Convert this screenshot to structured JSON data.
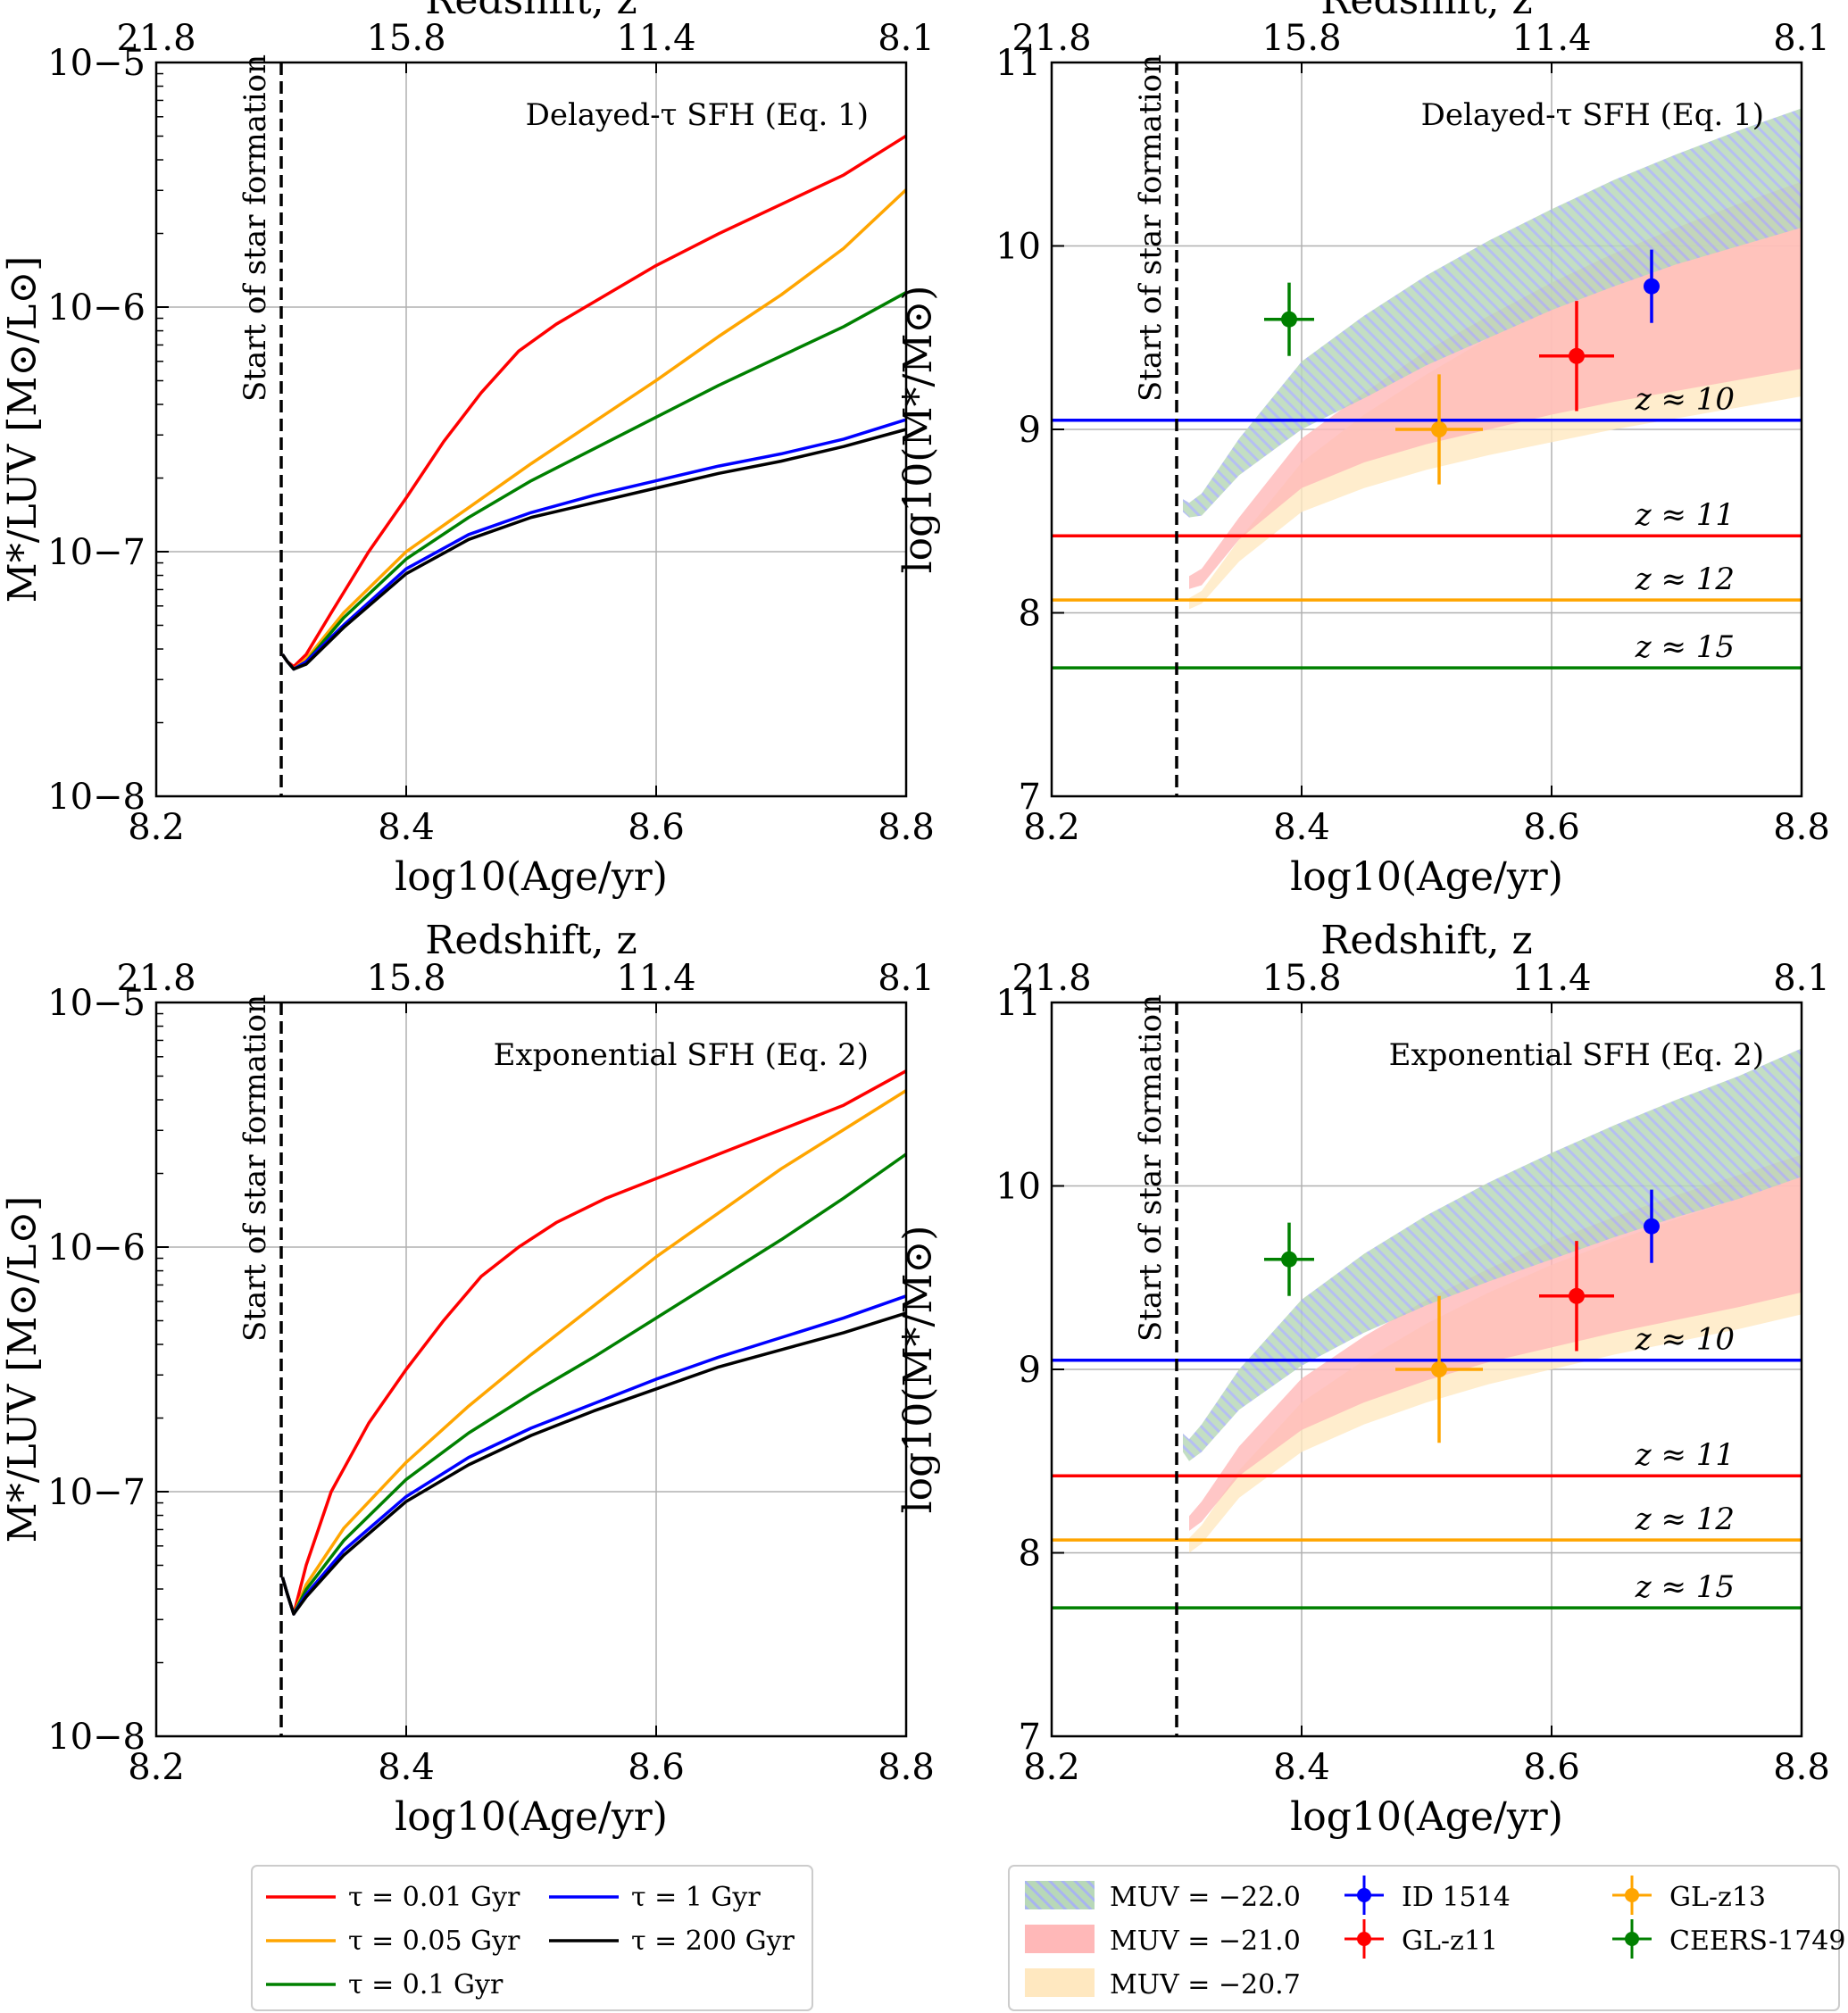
{
  "figure": {
    "legend_left": [
      {
        "label": "τ = 0.01 Gyr",
        "color": "#ff0000"
      },
      {
        "label": "τ = 0.05 Gyr",
        "color": "#ffa500"
      },
      {
        "label": "τ = 0.1 Gyr",
        "color": "#008000"
      },
      {
        "label": "τ = 1 Gyr",
        "color": "#0000ff"
      },
      {
        "label": "τ = 200 Gyr",
        "color": "#000000"
      }
    ],
    "legend_right": [
      {
        "label": "MUV = −22.0",
        "kind": "band",
        "color": "#b8d8b8",
        "hatch": "#a8b4f0"
      },
      {
        "label": "MUV = −21.0",
        "kind": "band",
        "color": "#ffb8b8"
      },
      {
        "label": "MUV = −20.7",
        "kind": "band",
        "color": "#ffe8c0"
      },
      {
        "label": "ID 1514",
        "kind": "point",
        "color": "#0000ff"
      },
      {
        "label": "GL-z11",
        "kind": "point",
        "color": "#ff0000"
      },
      {
        "label": "GL-z13",
        "kind": "point",
        "color": "#ffa500"
      },
      {
        "label": "CEERS-1749",
        "kind": "point",
        "color": "#008000"
      }
    ]
  },
  "chart_data": [
    {
      "id": "delayed-ml",
      "type": "line",
      "annotation": "Delayed-τ SFH (Eq. 1)",
      "xlabel": "log10(Age/yr)",
      "ylabel": "M*/LUV [M⊙/L⊙]",
      "top_axis_label": "Redshift, z",
      "xlim": [
        8.2,
        8.8
      ],
      "ylim_log": [
        -8,
        -5
      ],
      "yscale": "log",
      "x_ticks": [
        "8.2",
        "8.4",
        "8.6",
        "8.8"
      ],
      "x_tick_values": [
        8.2,
        8.4,
        8.6,
        8.8
      ],
      "y_ticks": [
        "10−8",
        "10−7",
        "10−6",
        "10−5"
      ],
      "y_tick_values": [
        -8,
        -7,
        -6,
        -5
      ],
      "top_ticks": [
        "21.8",
        "15.8",
        "11.4",
        "8.1"
      ],
      "top_tick_values": [
        8.2,
        8.4,
        8.6,
        8.8
      ],
      "vline": {
        "x": 8.3,
        "label": "Start of star formation"
      },
      "series": [
        {
          "name": "τ = 0.01 Gyr",
          "color": "#ff0000",
          "x": [
            8.301,
            8.305,
            8.31,
            8.32,
            8.34,
            8.37,
            8.4,
            8.43,
            8.46,
            8.49,
            8.52,
            8.56,
            8.6,
            8.65,
            8.7,
            8.75,
            8.8
          ],
          "y": [
            -7.42,
            -7.45,
            -7.47,
            -7.42,
            -7.25,
            -7.0,
            -6.78,
            -6.55,
            -6.35,
            -6.18,
            -6.07,
            -5.95,
            -5.83,
            -5.7,
            -5.58,
            -5.46,
            -5.3
          ]
        },
        {
          "name": "τ = 0.05 Gyr",
          "color": "#ffa500",
          "x": [
            8.301,
            8.305,
            8.31,
            8.32,
            8.35,
            8.4,
            8.45,
            8.5,
            8.55,
            8.6,
            8.65,
            8.7,
            8.75,
            8.8
          ],
          "y": [
            -7.42,
            -7.45,
            -7.48,
            -7.44,
            -7.25,
            -7.0,
            -6.82,
            -6.64,
            -6.47,
            -6.3,
            -6.12,
            -5.95,
            -5.76,
            -5.52
          ]
        },
        {
          "name": "τ = 0.1 Gyr",
          "color": "#008000",
          "x": [
            8.301,
            8.305,
            8.31,
            8.32,
            8.35,
            8.4,
            8.45,
            8.5,
            8.55,
            8.6,
            8.65,
            8.7,
            8.75,
            8.8
          ],
          "y": [
            -7.42,
            -7.45,
            -7.48,
            -7.45,
            -7.27,
            -7.03,
            -6.86,
            -6.71,
            -6.58,
            -6.45,
            -6.32,
            -6.2,
            -6.08,
            -5.94
          ]
        },
        {
          "name": "τ = 1 Gyr",
          "color": "#0000ff",
          "x": [
            8.301,
            8.305,
            8.31,
            8.32,
            8.35,
            8.4,
            8.45,
            8.5,
            8.55,
            8.6,
            8.65,
            8.7,
            8.75,
            8.8
          ],
          "y": [
            -7.42,
            -7.45,
            -7.48,
            -7.45,
            -7.3,
            -7.07,
            -6.93,
            -6.84,
            -6.77,
            -6.71,
            -6.65,
            -6.6,
            -6.54,
            -6.46
          ]
        },
        {
          "name": "τ = 200 Gyr",
          "color": "#000000",
          "x": [
            8.301,
            8.305,
            8.31,
            8.32,
            8.35,
            8.4,
            8.45,
            8.5,
            8.55,
            8.6,
            8.65,
            8.7,
            8.75,
            8.8
          ],
          "y": [
            -7.42,
            -7.45,
            -7.48,
            -7.46,
            -7.31,
            -7.09,
            -6.95,
            -6.86,
            -6.8,
            -6.74,
            -6.68,
            -6.63,
            -6.57,
            -6.5
          ]
        }
      ]
    },
    {
      "id": "delayed-mass",
      "type": "area",
      "annotation": "Delayed-τ SFH (Eq. 1)",
      "xlabel": "log10(Age/yr)",
      "ylabel": "log10(M*/M⊙)",
      "top_axis_label": "Redshift, z",
      "xlim": [
        8.2,
        8.8
      ],
      "ylim": [
        7,
        11
      ],
      "x_ticks": [
        "8.2",
        "8.4",
        "8.6",
        "8.8"
      ],
      "x_tick_values": [
        8.2,
        8.4,
        8.6,
        8.8
      ],
      "y_ticks": [
        "7",
        "8",
        "9",
        "10",
        "11"
      ],
      "y_tick_values": [
        7,
        8,
        9,
        10,
        11
      ],
      "top_ticks": [
        "21.8",
        "15.8",
        "11.4",
        "8.1"
      ],
      "top_tick_values": [
        8.2,
        8.4,
        8.6,
        8.8
      ],
      "vline": {
        "x": 8.3,
        "label": "Start of star formation"
      },
      "hlines": [
        {
          "y": 9.05,
          "label": "z ≈ 10",
          "color": "#0000ff"
        },
        {
          "y": 8.42,
          "label": "z ≈ 11",
          "color": "#ff0000"
        },
        {
          "y": 8.07,
          "label": "z ≈ 12",
          "color": "#ffa500"
        },
        {
          "y": 7.7,
          "label": "z ≈ 15",
          "color": "#008000"
        }
      ],
      "bands": [
        {
          "name": "MUV = −20.7",
          "color": "#ffe8c0",
          "x": [
            8.31,
            8.32,
            8.35,
            8.4,
            8.45,
            8.5,
            8.55,
            8.6,
            8.65,
            8.7,
            8.75,
            8.8
          ],
          "lower": [
            8.02,
            8.05,
            8.28,
            8.55,
            8.68,
            8.78,
            8.86,
            8.93,
            9.0,
            9.06,
            9.12,
            9.18
          ],
          "upper": [
            8.08,
            8.12,
            8.4,
            8.82,
            9.08,
            9.3,
            9.5,
            9.68,
            9.84,
            9.98,
            10.12,
            10.25
          ]
        },
        {
          "name": "MUV = −21.0",
          "color": "#ffb8b8",
          "x": [
            8.31,
            8.32,
            8.35,
            8.4,
            8.45,
            8.5,
            8.55,
            8.6,
            8.65,
            8.7,
            8.75,
            8.8
          ],
          "lower": [
            8.13,
            8.15,
            8.4,
            8.68,
            8.82,
            8.92,
            9.0,
            9.08,
            9.15,
            9.21,
            9.27,
            9.33
          ],
          "upper": [
            8.2,
            8.24,
            8.52,
            8.95,
            9.2,
            9.43,
            9.62,
            9.8,
            9.96,
            10.1,
            10.23,
            10.35
          ]
        },
        {
          "name": "MUV = −22.0",
          "color": "#b8d8b8",
          "hatch": "#a8b4f0",
          "x": [
            8.305,
            8.31,
            8.32,
            8.35,
            8.4,
            8.45,
            8.5,
            8.55,
            8.6,
            8.65,
            8.7,
            8.75,
            8.8
          ],
          "lower": [
            8.55,
            8.52,
            8.53,
            8.75,
            9.0,
            9.17,
            9.35,
            9.5,
            9.65,
            9.78,
            9.9,
            10.0,
            10.1
          ],
          "upper": [
            8.62,
            8.6,
            8.65,
            8.95,
            9.37,
            9.62,
            9.84,
            10.03,
            10.2,
            10.36,
            10.5,
            10.63,
            10.75
          ]
        }
      ],
      "points": [
        {
          "name": "ID 1514",
          "color": "#0000ff",
          "x": 8.68,
          "y": 9.78,
          "xerr": 0.0,
          "yerr": 0.2
        },
        {
          "name": "GL-z11",
          "color": "#ff0000",
          "x": 8.62,
          "y": 9.4,
          "xerr": 0.03,
          "yerr": 0.3
        },
        {
          "name": "GL-z13",
          "color": "#ffa500",
          "x": 8.51,
          "y": 9.0,
          "xerr": 0.035,
          "yerr": 0.3
        },
        {
          "name": "CEERS-1749",
          "color": "#008000",
          "x": 8.39,
          "y": 9.6,
          "xerr": 0.02,
          "yerr": 0.2
        }
      ]
    },
    {
      "id": "exp-ml",
      "type": "line",
      "annotation": "Exponential SFH (Eq. 2)",
      "xlabel": "log10(Age/yr)",
      "ylabel": "M*/LUV [M⊙/L⊙]",
      "top_axis_label": "Redshift, z",
      "xlim": [
        8.2,
        8.8
      ],
      "ylim_log": [
        -8,
        -5
      ],
      "yscale": "log",
      "x_ticks": [
        "8.2",
        "8.4",
        "8.6",
        "8.8"
      ],
      "x_tick_values": [
        8.2,
        8.4,
        8.6,
        8.8
      ],
      "y_ticks": [
        "10−8",
        "10−7",
        "10−6",
        "10−5"
      ],
      "y_tick_values": [
        -8,
        -7,
        -6,
        -5
      ],
      "top_ticks": [
        "21.8",
        "15.8",
        "11.4",
        "8.1"
      ],
      "top_tick_values": [
        8.2,
        8.4,
        8.6,
        8.8
      ],
      "vline": {
        "x": 8.3,
        "label": "Start of star formation"
      },
      "series": [
        {
          "name": "τ = 0.01 Gyr",
          "color": "#ff0000",
          "x": [
            8.301,
            8.305,
            8.31,
            8.32,
            8.34,
            8.37,
            8.4,
            8.43,
            8.46,
            8.49,
            8.52,
            8.56,
            8.6,
            8.65,
            8.7,
            8.75,
            8.8
          ],
          "y": [
            -7.35,
            -7.42,
            -7.5,
            -7.3,
            -7.0,
            -6.72,
            -6.5,
            -6.3,
            -6.12,
            -6.0,
            -5.9,
            -5.8,
            -5.72,
            -5.62,
            -5.52,
            -5.42,
            -5.28
          ]
        },
        {
          "name": "τ = 0.05 Gyr",
          "color": "#ffa500",
          "x": [
            8.301,
            8.305,
            8.31,
            8.32,
            8.35,
            8.4,
            8.45,
            8.5,
            8.55,
            8.6,
            8.65,
            8.7,
            8.75,
            8.8
          ],
          "y": [
            -7.35,
            -7.42,
            -7.5,
            -7.38,
            -7.15,
            -6.88,
            -6.65,
            -6.44,
            -6.24,
            -6.04,
            -5.86,
            -5.68,
            -5.52,
            -5.36
          ]
        },
        {
          "name": "τ = 0.1 Gyr",
          "color": "#008000",
          "x": [
            8.301,
            8.305,
            8.31,
            8.32,
            8.35,
            8.4,
            8.45,
            8.5,
            8.55,
            8.6,
            8.65,
            8.7,
            8.75,
            8.8
          ],
          "y": [
            -7.35,
            -7.42,
            -7.5,
            -7.4,
            -7.2,
            -6.95,
            -6.76,
            -6.6,
            -6.45,
            -6.29,
            -6.13,
            -5.97,
            -5.8,
            -5.62
          ]
        },
        {
          "name": "τ = 1 Gyr",
          "color": "#0000ff",
          "x": [
            8.301,
            8.305,
            8.31,
            8.32,
            8.35,
            8.4,
            8.45,
            8.5,
            8.55,
            8.6,
            8.65,
            8.7,
            8.75,
            8.8
          ],
          "y": [
            -7.35,
            -7.42,
            -7.5,
            -7.42,
            -7.24,
            -7.02,
            -6.86,
            -6.74,
            -6.64,
            -6.54,
            -6.45,
            -6.37,
            -6.29,
            -6.2
          ]
        },
        {
          "name": "τ = 200 Gyr",
          "color": "#000000",
          "x": [
            8.301,
            8.305,
            8.31,
            8.32,
            8.35,
            8.4,
            8.45,
            8.5,
            8.55,
            8.6,
            8.65,
            8.7,
            8.75,
            8.8
          ],
          "y": [
            -7.35,
            -7.42,
            -7.5,
            -7.43,
            -7.26,
            -7.04,
            -6.89,
            -6.77,
            -6.67,
            -6.58,
            -6.49,
            -6.42,
            -6.35,
            -6.27
          ]
        }
      ]
    },
    {
      "id": "exp-mass",
      "type": "area",
      "annotation": "Exponential SFH (Eq. 2)",
      "xlabel": "log10(Age/yr)",
      "ylabel": "log10(M*/M⊙)",
      "top_axis_label": "Redshift, z",
      "xlim": [
        8.2,
        8.8
      ],
      "ylim": [
        7,
        11
      ],
      "x_ticks": [
        "8.2",
        "8.4",
        "8.6",
        "8.8"
      ],
      "x_tick_values": [
        8.2,
        8.4,
        8.6,
        8.8
      ],
      "y_ticks": [
        "7",
        "8",
        "9",
        "10",
        "11"
      ],
      "y_tick_values": [
        7,
        8,
        9,
        10,
        11
      ],
      "top_ticks": [
        "21.8",
        "15.8",
        "11.4",
        "8.1"
      ],
      "top_tick_values": [
        8.2,
        8.4,
        8.6,
        8.8
      ],
      "vline": {
        "x": 8.3,
        "label": "Start of star formation"
      },
      "hlines": [
        {
          "y": 9.05,
          "label": "z ≈ 10",
          "color": "#0000ff"
        },
        {
          "y": 8.42,
          "label": "z ≈ 11",
          "color": "#ff0000"
        },
        {
          "y": 8.07,
          "label": "z ≈ 12",
          "color": "#ffa500"
        },
        {
          "y": 7.7,
          "label": "z ≈ 15",
          "color": "#008000"
        }
      ],
      "bands": [
        {
          "name": "MUV = −20.7",
          "color": "#ffe8c0",
          "x": [
            8.31,
            8.32,
            8.35,
            8.4,
            8.45,
            8.5,
            8.55,
            8.6,
            8.65,
            8.7,
            8.75,
            8.8
          ],
          "lower": [
            8.0,
            8.05,
            8.3,
            8.55,
            8.7,
            8.82,
            8.92,
            9.0,
            9.08,
            9.15,
            9.22,
            9.3
          ],
          "upper": [
            8.08,
            8.15,
            8.45,
            8.82,
            9.05,
            9.25,
            9.42,
            9.57,
            9.7,
            9.82,
            9.93,
            10.05
          ]
        },
        {
          "name": "MUV = −21.0",
          "color": "#ffb8b8",
          "x": [
            8.31,
            8.32,
            8.35,
            8.4,
            8.45,
            8.5,
            8.55,
            8.6,
            8.65,
            8.7,
            8.75,
            8.8
          ],
          "lower": [
            8.12,
            8.17,
            8.42,
            8.67,
            8.82,
            8.94,
            9.04,
            9.12,
            9.2,
            9.27,
            9.34,
            9.42
          ],
          "upper": [
            8.2,
            8.28,
            8.58,
            8.95,
            9.18,
            9.38,
            9.55,
            9.7,
            9.83,
            9.95,
            10.06,
            10.17
          ]
        },
        {
          "name": "MUV = −22.0",
          "color": "#b8d8b8",
          "hatch": "#a8b4f0",
          "x": [
            8.305,
            8.31,
            8.32,
            8.35,
            8.4,
            8.45,
            8.5,
            8.55,
            8.6,
            8.65,
            8.7,
            8.75,
            8.8
          ],
          "lower": [
            8.55,
            8.5,
            8.55,
            8.78,
            9.02,
            9.2,
            9.35,
            9.48,
            9.6,
            9.72,
            9.83,
            9.93,
            10.05
          ],
          "upper": [
            8.65,
            8.62,
            8.7,
            9.0,
            9.38,
            9.63,
            9.84,
            10.02,
            10.18,
            10.33,
            10.47,
            10.6,
            10.75
          ]
        }
      ],
      "points": [
        {
          "name": "ID 1514",
          "color": "#0000ff",
          "x": 8.68,
          "y": 9.78,
          "xerr": 0.0,
          "yerr": 0.2
        },
        {
          "name": "GL-z11",
          "color": "#ff0000",
          "x": 8.62,
          "y": 9.4,
          "xerr": 0.03,
          "yerr": 0.3
        },
        {
          "name": "GL-z13",
          "color": "#ffa500",
          "x": 8.51,
          "y": 9.0,
          "xerr": 0.035,
          "yerr": 0.4
        },
        {
          "name": "CEERS-1749",
          "color": "#008000",
          "x": 8.39,
          "y": 9.6,
          "xerr": 0.02,
          "yerr": 0.2
        }
      ]
    }
  ]
}
